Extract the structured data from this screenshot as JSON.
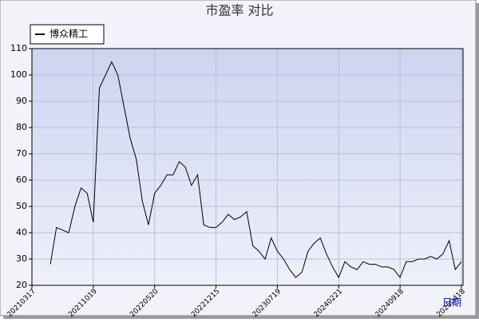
{
  "chart_data": {
    "type": "line",
    "title": "市盈率  对比",
    "x_label": "日期",
    "categories": [
      "20210317",
      null,
      null,
      null,
      null,
      null,
      null,
      null,
      null,
      null,
      "20211019",
      null,
      null,
      null,
      null,
      null,
      null,
      null,
      null,
      null,
      "20220520",
      null,
      null,
      null,
      null,
      null,
      null,
      null,
      null,
      null,
      "20221215",
      null,
      null,
      null,
      null,
      null,
      null,
      null,
      null,
      null,
      "20230719",
      null,
      null,
      null,
      null,
      null,
      null,
      null,
      null,
      null,
      "20240221",
      null,
      null,
      null,
      null,
      null,
      null,
      null,
      null,
      null,
      "20240918",
      null,
      null,
      null,
      null,
      null,
      null,
      null,
      null,
      null,
      "20250418"
    ],
    "series": [
      {
        "name": "博众精工",
        "color": "#000000",
        "values": [
          null,
          null,
          null,
          28,
          42,
          41,
          40,
          50,
          57,
          55,
          44,
          95,
          100,
          105,
          100,
          88,
          76,
          68,
          52,
          43,
          55,
          58,
          62,
          62,
          67,
          65,
          58,
          62,
          43,
          42,
          42,
          44,
          47,
          45,
          46,
          48,
          35,
          33,
          30,
          38,
          33,
          30,
          26,
          23,
          25,
          33,
          36,
          38,
          32,
          27,
          23,
          29,
          27,
          26,
          29,
          28,
          28,
          27,
          27,
          26,
          23,
          29,
          29,
          30,
          30,
          31,
          30,
          32,
          37,
          26,
          29
        ]
      }
    ],
    "ylim": [
      20,
      110
    ],
    "yticks": [
      20,
      30,
      40,
      50,
      60,
      70,
      80,
      90,
      100,
      110
    ],
    "grid": true,
    "legend": "top-left"
  }
}
